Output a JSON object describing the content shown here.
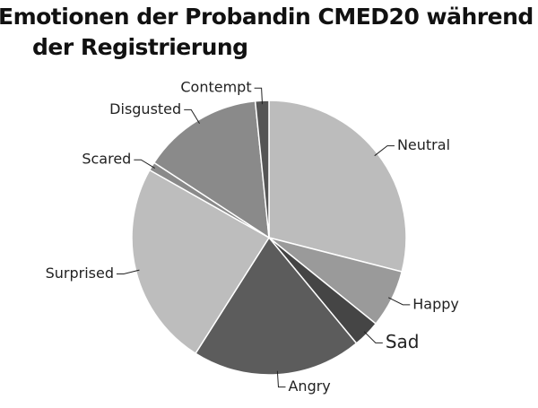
{
  "chart_data": {
    "type": "pie",
    "title": "Emotionen der Probandin CMED20 während der Registrierung",
    "categories": [
      "Neutral",
      "Happy",
      "Sad",
      "Angry",
      "Surprised",
      "Scared",
      "Disgusted",
      "Contempt"
    ],
    "values": [
      29,
      6.8,
      3.2,
      20,
      24.2,
      1,
      14.2,
      1.6
    ],
    "colors": [
      "#bcbcbc",
      "#9a9a9a",
      "#454545",
      "#5c5c5c",
      "#bdbdbd",
      "#8a8a8a",
      "#8a8a8a",
      "#555555"
    ]
  }
}
